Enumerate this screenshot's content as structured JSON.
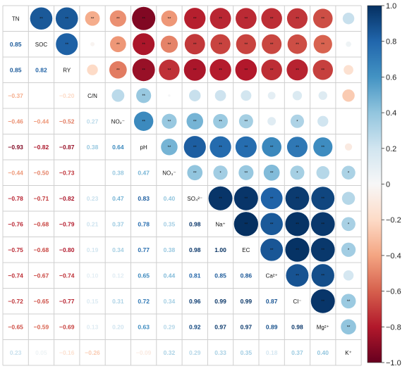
{
  "chart_data": {
    "type": "heatmap",
    "variables": [
      "TN",
      "SOC",
      "RY",
      "C/N",
      "NO₂⁻",
      "pH",
      "NO₃⁻",
      "SO₄²⁻",
      "Na⁺",
      "EC",
      "Ca²⁺",
      "Cl⁻",
      "Mg²⁺",
      "K⁺"
    ],
    "matrix": [
      [
        1,
        0.85,
        0.85,
        -0.37,
        -0.46,
        -0.93,
        -0.44,
        -0.78,
        -0.76,
        -0.75,
        -0.74,
        -0.72,
        -0.65,
        0.23
      ],
      [
        0.85,
        1,
        0.82,
        -0.03,
        -0.44,
        -0.82,
        -0.5,
        -0.71,
        -0.68,
        -0.68,
        -0.67,
        -0.65,
        -0.59,
        0.05
      ],
      [
        0.85,
        0.82,
        1,
        -0.2,
        -0.52,
        -0.87,
        -0.73,
        -0.82,
        -0.79,
        -0.8,
        -0.74,
        -0.77,
        -0.69,
        -0.16
      ],
      [
        -0.37,
        -0.03,
        -0.2,
        1,
        0.27,
        0.38,
        0.01,
        0.23,
        0.21,
        0.19,
        0.1,
        0.15,
        0.13,
        -0.26
      ],
      [
        -0.46,
        -0.44,
        -0.52,
        0.27,
        1,
        0.64,
        0.38,
        0.47,
        0.37,
        0.34,
        0.12,
        0.31,
        0.2,
        0.0
      ],
      [
        -0.93,
        -0.82,
        -0.87,
        0.38,
        0.64,
        1,
        0.47,
        0.83,
        0.78,
        0.77,
        0.65,
        0.72,
        0.63,
        -0.09
      ],
      [
        -0.44,
        -0.5,
        -0.73,
        0.01,
        0.38,
        0.47,
        1,
        0.4,
        0.35,
        0.38,
        0.44,
        0.34,
        0.29,
        0.32
      ],
      [
        -0.78,
        -0.71,
        -0.82,
        0.23,
        0.47,
        0.83,
        0.4,
        1,
        0.98,
        0.98,
        0.81,
        0.96,
        0.92,
        0.29
      ],
      [
        -0.76,
        -0.68,
        -0.79,
        0.21,
        0.37,
        0.78,
        0.35,
        0.98,
        1,
        1.0,
        0.85,
        0.99,
        0.97,
        0.33
      ],
      [
        -0.75,
        -0.68,
        -0.8,
        0.19,
        0.34,
        0.77,
        0.38,
        0.98,
        1.0,
        1,
        0.86,
        0.99,
        0.97,
        0.35
      ],
      [
        -0.74,
        -0.67,
        -0.74,
        0.1,
        0.12,
        0.65,
        0.44,
        0.81,
        0.85,
        0.86,
        1,
        0.87,
        0.89,
        0.18
      ],
      [
        -0.72,
        -0.65,
        -0.77,
        0.15,
        0.31,
        0.72,
        0.34,
        0.96,
        0.99,
        0.99,
        0.87,
        1,
        0.98,
        0.37
      ],
      [
        -0.65,
        -0.59,
        -0.69,
        0.13,
        0.2,
        0.63,
        0.29,
        0.92,
        0.97,
        0.97,
        0.89,
        0.98,
        1,
        0.4
      ],
      [
        0.23,
        0.05,
        -0.16,
        -0.26,
        0.0,
        -0.09,
        0.32,
        0.29,
        0.33,
        0.35,
        0.18,
        0.37,
        0.4,
        1
      ]
    ],
    "lower_labels": [
      [],
      [
        "0.85"
      ],
      [
        "0.85",
        "0.82"
      ],
      [
        "−0.37",
        "",
        "−0.20"
      ],
      [
        "−0.46",
        "−0.44",
        "−0.52",
        "0.27"
      ],
      [
        "−0.93",
        "−0.82",
        "−0.87",
        "0.38",
        "0.64"
      ],
      [
        "−0.44",
        "−0.50",
        "−0.73",
        "",
        "0.38",
        "0.47"
      ],
      [
        "−0.78",
        "−0.71",
        "−0.82",
        "0.23",
        "0.47",
        "0.83",
        "0.40"
      ],
      [
        "−0.76",
        "−0.68",
        "−0.79",
        "0.21",
        "0.37",
        "0.78",
        "0.35",
        "0.98"
      ],
      [
        "−0.75",
        "−0.68",
        "−0.80",
        "0.19",
        "0.34",
        "0.77",
        "0.38",
        "0.98",
        "1.00"
      ],
      [
        "−0.74",
        "−0.67",
        "−0.74",
        "0.10",
        "0.12",
        "0.65",
        "0.44",
        "0.81",
        "0.85",
        "0.86"
      ],
      [
        "−0.72",
        "−0.65",
        "−0.77",
        "0.15",
        "0.31",
        "0.72",
        "0.34",
        "0.96",
        "0.99",
        "0.99",
        "0.87"
      ],
      [
        "−0.65",
        "−0.59",
        "−0.69",
        "0.13",
        "0.20",
        "0.63",
        "0.29",
        "0.92",
        "0.97",
        "0.97",
        "0.89",
        "0.98"
      ],
      [
        "0.23",
        "0.05",
        "−0.16",
        "−0.26",
        "",
        "−0.09",
        "0.32",
        "0.29",
        "0.33",
        "0.35",
        "0.18",
        "0.37",
        "0.40"
      ]
    ],
    "upper_significance": [
      [
        "",
        "**",
        "**",
        "**",
        "**",
        "**",
        "**",
        "**",
        "**",
        "**",
        "**",
        "**",
        "**",
        ""
      ],
      [
        "",
        "",
        "**",
        "",
        "**",
        "**",
        "**",
        "**",
        "**",
        "**",
        "**",
        "**",
        "**",
        ""
      ],
      [
        "",
        "",
        "",
        "",
        "**",
        "**",
        "**",
        "**",
        "**",
        "**",
        "**",
        "**",
        "**",
        ""
      ],
      [
        "",
        "",
        "",
        "",
        "",
        "**",
        "",
        "",
        "",
        "",
        "",
        "",
        "",
        ""
      ],
      [
        "",
        "",
        "",
        "",
        "",
        "**",
        "**",
        "**",
        "**",
        "**",
        "",
        "*",
        "",
        ""
      ],
      [
        "",
        "",
        "",
        "",
        "",
        "",
        "**",
        "**",
        "**",
        "**",
        "**",
        "**",
        "**",
        ""
      ],
      [
        "",
        "",
        "",
        "",
        "",
        "",
        "",
        "**",
        "*",
        "**",
        "**",
        "*",
        "",
        "*"
      ],
      [
        "",
        "",
        "",
        "",
        "",
        "",
        "",
        "",
        "**",
        "**",
        "**",
        "**",
        "**",
        ""
      ],
      [
        "",
        "",
        "",
        "",
        "",
        "",
        "",
        "",
        "",
        "**",
        "**",
        "**",
        "**",
        "*"
      ],
      [
        "",
        "",
        "",
        "",
        "",
        "",
        "",
        "",
        "",
        "",
        "**",
        "**",
        "**",
        "*"
      ],
      [
        "",
        "",
        "",
        "",
        "",
        "",
        "",
        "",
        "",
        "",
        "",
        "**",
        "**",
        ""
      ],
      [
        "",
        "",
        "",
        "",
        "",
        "",
        "",
        "",
        "",
        "",
        "",
        "",
        "**",
        "**"
      ],
      [
        "",
        "",
        "",
        "",
        "",
        "",
        "",
        "",
        "",
        "",
        "",
        "",
        "",
        "**"
      ],
      [
        "",
        "",
        "",
        "",
        "",
        "",
        "",
        "",
        "",
        "",
        "",
        "",
        "",
        ""
      ]
    ],
    "colorbar": {
      "ticks": [
        "1.0",
        "0.8",
        "0.6",
        "0.4",
        "0.2",
        "0",
        "−0.2",
        "−0.4",
        "−0.6",
        "−0.8",
        "−1.0"
      ],
      "colors": {
        "positive": "#053061",
        "neutral": "#f7f7f7",
        "negative": "#67001f"
      }
    },
    "range": [
      -1,
      1
    ]
  }
}
